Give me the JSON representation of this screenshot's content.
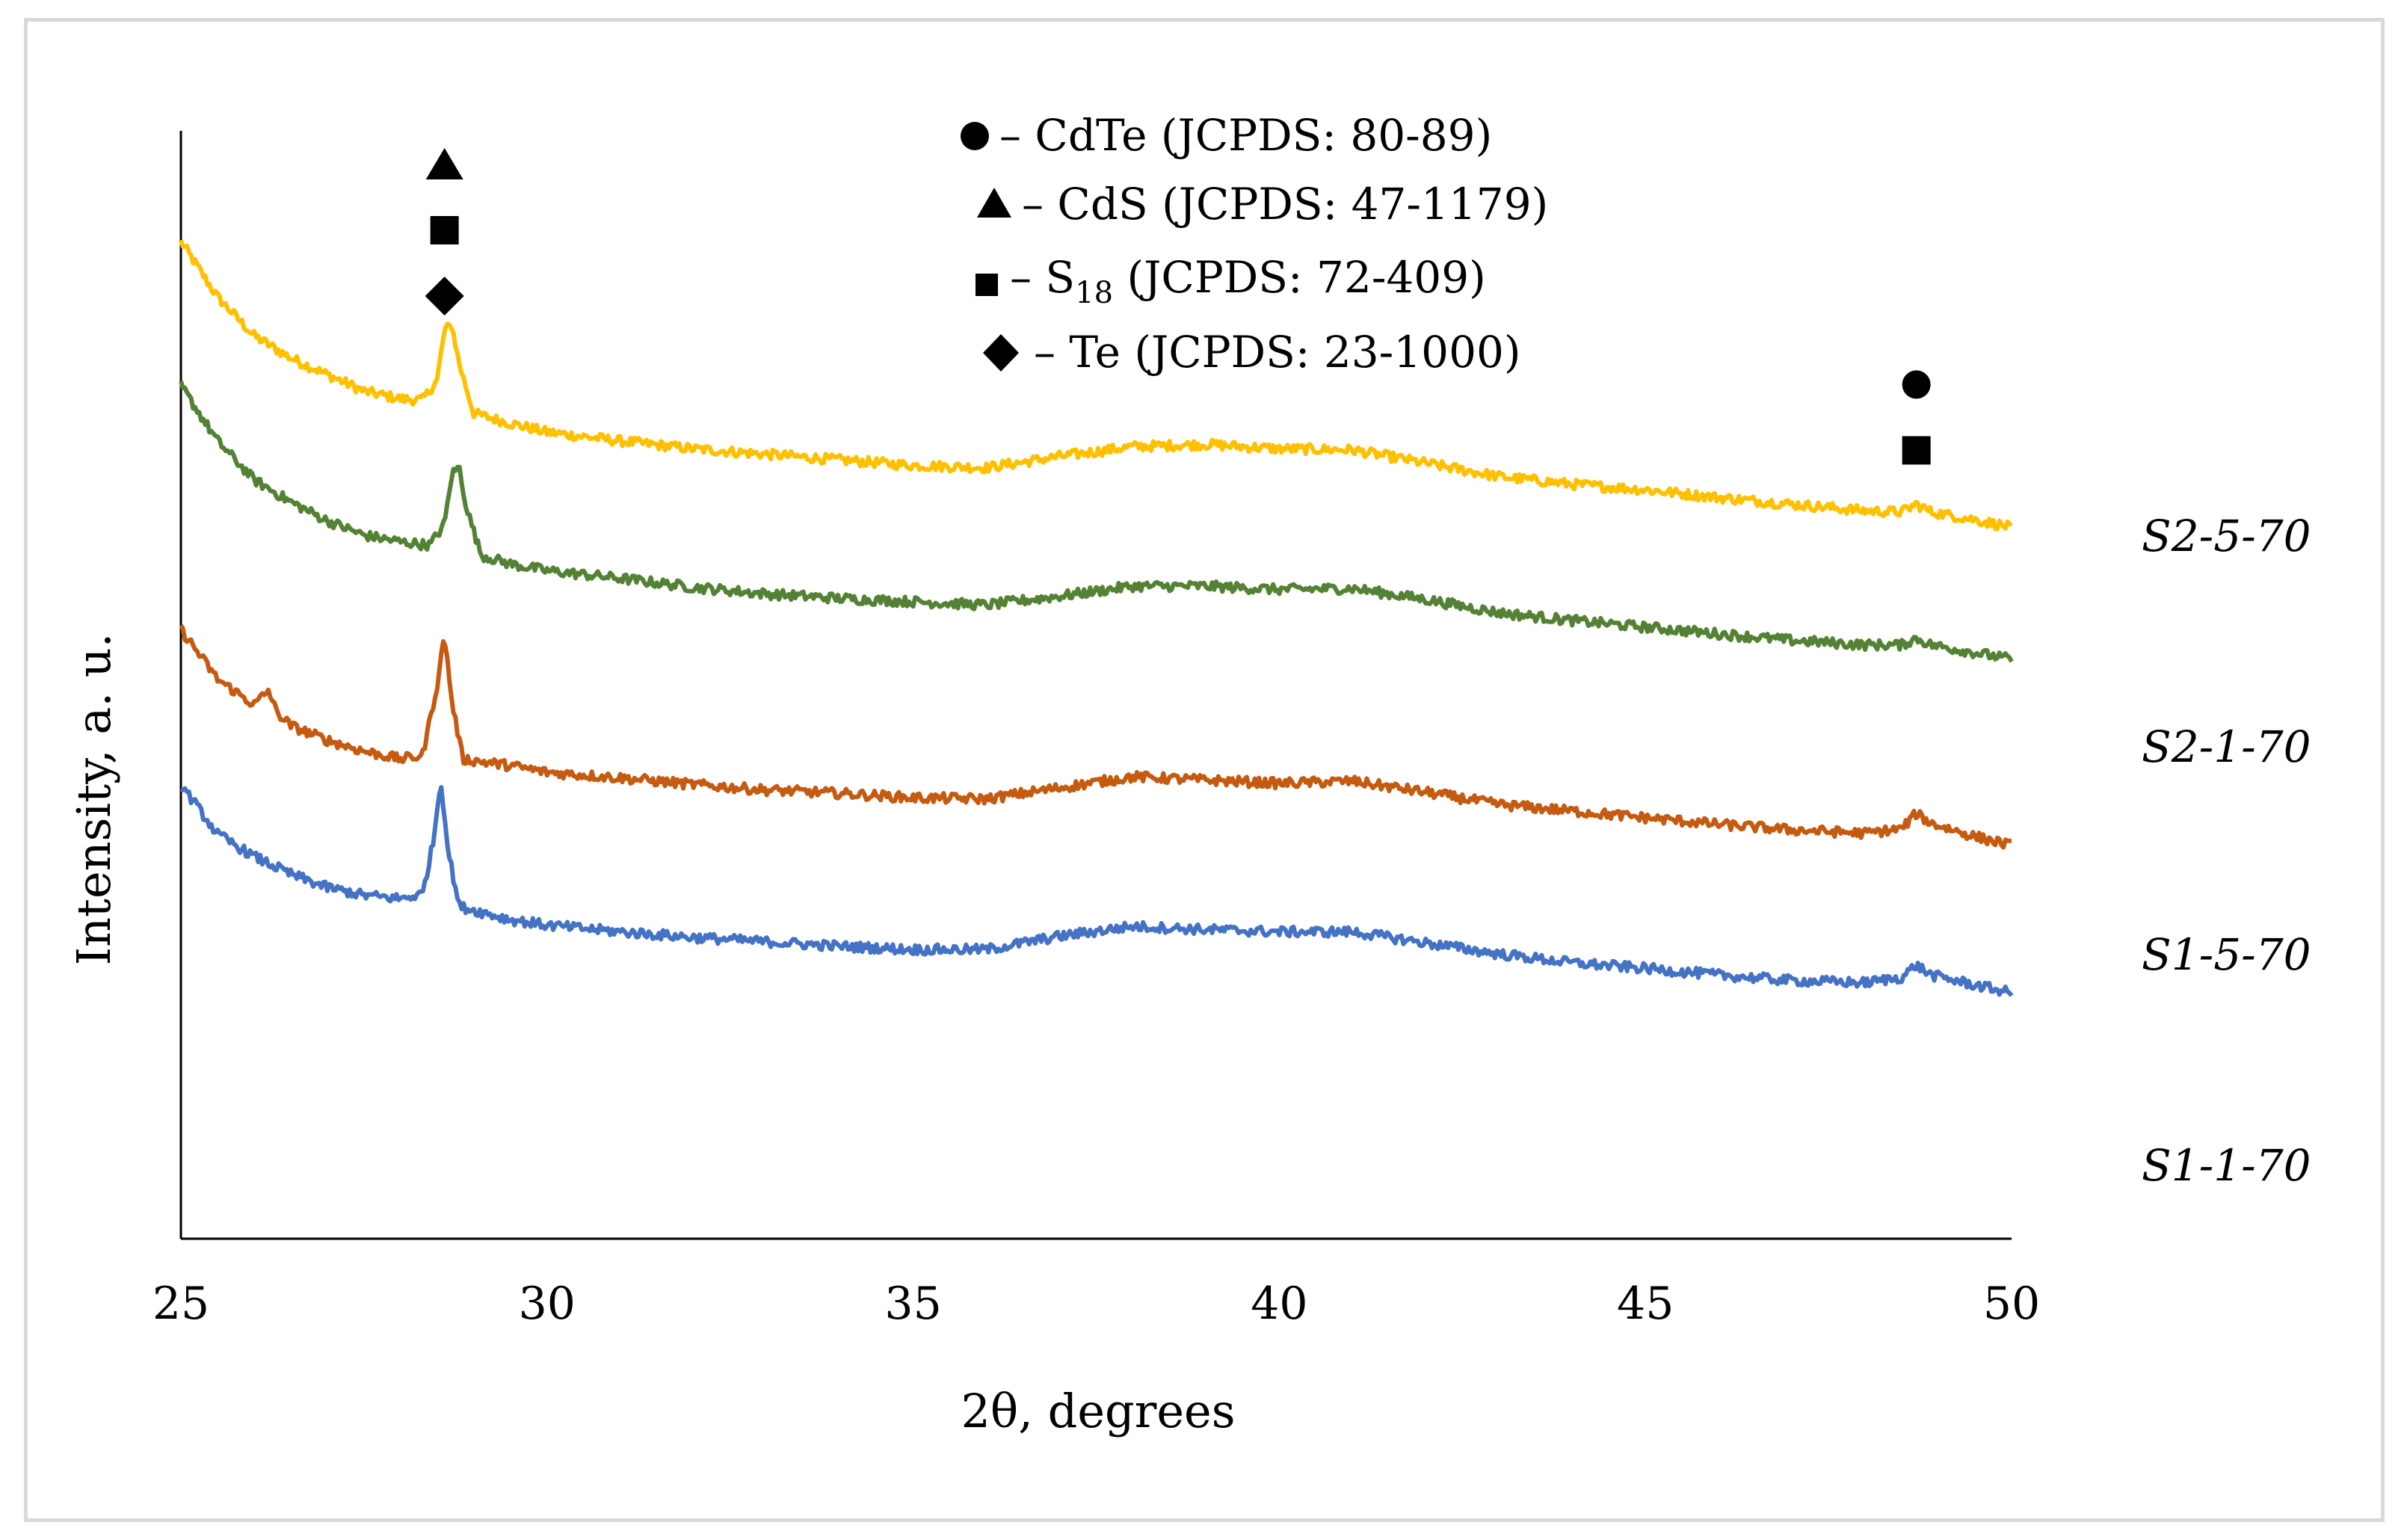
{
  "chart_data": {
    "type": "line",
    "title": "",
    "xlabel": "2θ, degrees",
    "ylabel": "Intensity, a. u.",
    "xlim": [
      25,
      50
    ],
    "xticks": [
      "25",
      "30",
      "35",
      "40",
      "45",
      "50"
    ],
    "ylim": [
      0,
      100
    ],
    "grid": false,
    "legend_position": "top-center",
    "legend": [
      {
        "symbol": "circle",
        "phase": "CdTe",
        "label": "– CdTe (JCPDS: 80-89)"
      },
      {
        "symbol": "triangle",
        "phase": "CdS",
        "label": "– CdS (JCPDS: 47-1179)"
      },
      {
        "symbol": "square",
        "phase": "S18",
        "label_prefix": "– S",
        "label_sub": "18",
        "label_suffix": " (JCPDS: 72-409)"
      },
      {
        "symbol": "diamond",
        "phase": "Te",
        "label": "– Te (JCPDS: 23-1000)"
      }
    ],
    "peak_markers": [
      {
        "x": 28.6,
        "symbols": [
          "triangle",
          "square",
          "diamond"
        ]
      },
      {
        "x": 48.7,
        "symbols": [
          "circle",
          "square"
        ]
      }
    ],
    "series": [
      {
        "name": "S2-5-70",
        "color": "#ffc000",
        "points": [
          [
            25,
            90
          ],
          [
            25.5,
            85
          ],
          [
            26,
            81.5
          ],
          [
            26.5,
            79.5
          ],
          [
            27,
            78
          ],
          [
            27.5,
            76.5
          ],
          [
            28,
            75.8
          ],
          [
            28.3,
            75.7
          ],
          [
            28.5,
            77.5
          ],
          [
            28.6,
            82
          ],
          [
            28.7,
            82.5
          ],
          [
            28.8,
            79
          ],
          [
            29,
            74.5
          ],
          [
            29.5,
            73.6
          ],
          [
            30,
            72.8
          ],
          [
            31,
            72
          ],
          [
            32,
            71.3
          ],
          [
            33,
            70.8
          ],
          [
            34,
            70.3
          ],
          [
            35,
            69.8
          ],
          [
            36,
            69.6
          ],
          [
            37,
            70.6
          ],
          [
            38,
            71.5
          ],
          [
            39,
            71.7
          ],
          [
            40,
            71.3
          ],
          [
            41,
            71.2
          ],
          [
            42,
            70
          ],
          [
            43,
            68.8
          ],
          [
            44,
            68.1
          ],
          [
            45,
            67.6
          ],
          [
            46,
            66.9
          ],
          [
            47,
            66.3
          ],
          [
            48,
            65.7
          ],
          [
            48.5,
            65.6
          ],
          [
            48.7,
            66.3
          ],
          [
            48.9,
            65.6
          ],
          [
            49.5,
            64.9
          ],
          [
            50,
            64.2
          ]
        ]
      },
      {
        "name": "S2-1-70",
        "color": "#548235",
        "points": [
          [
            25,
            77
          ],
          [
            25.5,
            72
          ],
          [
            26,
            68.5
          ],
          [
            26.5,
            66.5
          ],
          [
            27,
            64.8
          ],
          [
            27.5,
            63.5
          ],
          [
            28,
            62.9
          ],
          [
            28.4,
            62.6
          ],
          [
            28.6,
            64.5
          ],
          [
            28.7,
            69
          ],
          [
            28.8,
            69.7
          ],
          [
            28.9,
            66
          ],
          [
            29.1,
            61.7
          ],
          [
            29.5,
            60.9
          ],
          [
            30,
            60.3
          ],
          [
            31,
            59.6
          ],
          [
            32,
            58.8
          ],
          [
            33,
            58.2
          ],
          [
            34,
            57.8
          ],
          [
            35,
            57.5
          ],
          [
            36,
            57.2
          ],
          [
            37,
            58
          ],
          [
            38,
            58.9
          ],
          [
            39,
            58.9
          ],
          [
            40,
            58.6
          ],
          [
            41,
            58.7
          ],
          [
            42,
            57.7
          ],
          [
            43,
            56.5
          ],
          [
            44,
            55.8
          ],
          [
            45,
            55.2
          ],
          [
            46,
            54.6
          ],
          [
            47,
            54
          ],
          [
            48,
            53.6
          ],
          [
            48.5,
            53.6
          ],
          [
            48.7,
            54.2
          ],
          [
            48.9,
            53.6
          ],
          [
            49.5,
            52.9
          ],
          [
            50,
            52.3
          ]
        ]
      },
      {
        "name": "S1-5-70",
        "color": "#c55a11",
        "points": [
          [
            25,
            55
          ],
          [
            25.5,
            50.5
          ],
          [
            26,
            48.2
          ],
          [
            26.2,
            49.5
          ],
          [
            26.3,
            47.6
          ],
          [
            26.5,
            46.3
          ],
          [
            27,
            45
          ],
          [
            27.5,
            44
          ],
          [
            28,
            43.3
          ],
          [
            28.3,
            43.6
          ],
          [
            28.5,
            50
          ],
          [
            28.6,
            54.5
          ],
          [
            28.7,
            48.5
          ],
          [
            28.85,
            43.3
          ],
          [
            29.5,
            42.7
          ],
          [
            30,
            42.1
          ],
          [
            31,
            41.6
          ],
          [
            32,
            41
          ],
          [
            33,
            40.5
          ],
          [
            34,
            40.2
          ],
          [
            35,
            39.8
          ],
          [
            36,
            39.7
          ],
          [
            37,
            40.7
          ],
          [
            38,
            41.7
          ],
          [
            39,
            41.4
          ],
          [
            40,
            41.1
          ],
          [
            41,
            41.3
          ],
          [
            42,
            40.3
          ],
          [
            43,
            39.2
          ],
          [
            44,
            38.6
          ],
          [
            45,
            38
          ],
          [
            46,
            37.4
          ],
          [
            47,
            36.9
          ],
          [
            48,
            36.6
          ],
          [
            48.5,
            37
          ],
          [
            48.7,
            38.4
          ],
          [
            48.9,
            37.5
          ],
          [
            49.5,
            36.3
          ],
          [
            50,
            35.5
          ]
        ]
      },
      {
        "name": "S1-1-70",
        "color": "#4472c4",
        "points": [
          [
            25,
            41
          ],
          [
            25.5,
            36.5
          ],
          [
            26,
            34.5
          ],
          [
            26.5,
            32.9
          ],
          [
            27,
            31.7
          ],
          [
            27.5,
            31
          ],
          [
            28,
            30.7
          ],
          [
            28.3,
            31.1
          ],
          [
            28.45,
            36
          ],
          [
            28.55,
            41.5
          ],
          [
            28.65,
            35
          ],
          [
            28.8,
            30
          ],
          [
            29.5,
            28.8
          ],
          [
            30,
            28.3
          ],
          [
            31,
            27.7
          ],
          [
            32,
            27.2
          ],
          [
            33,
            26.8
          ],
          [
            34,
            26.4
          ],
          [
            35,
            26.1
          ],
          [
            36,
            26.1
          ],
          [
            37,
            27.3
          ],
          [
            38,
            28.2
          ],
          [
            39,
            27.9
          ],
          [
            40,
            27.7
          ],
          [
            41,
            27.7
          ],
          [
            42,
            26.7
          ],
          [
            43,
            25.7
          ],
          [
            44,
            24.9
          ],
          [
            45,
            24.4
          ],
          [
            46,
            23.8
          ],
          [
            47,
            23.3
          ],
          [
            48,
            23.1
          ],
          [
            48.5,
            23.6
          ],
          [
            48.7,
            24.7
          ],
          [
            48.9,
            23.8
          ],
          [
            49.5,
            22.9
          ],
          [
            50,
            22.2
          ]
        ]
      }
    ]
  }
}
